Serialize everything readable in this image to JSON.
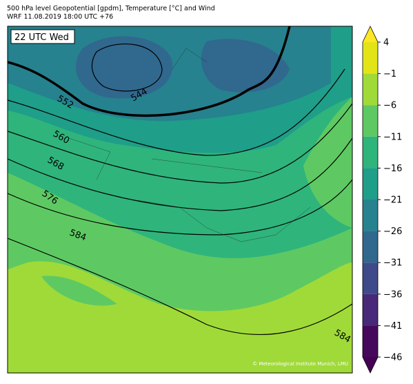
{
  "header": {
    "title": "500 hPa level Geopotential [gpdm], Temperature [°C] and Wind",
    "subtitle": "WRF 11.08.2019 18:00 UTC +76"
  },
  "map": {
    "time_label": "22 UTC Wed",
    "contour_labels": [
      "552",
      "544",
      "560",
      "568",
      "576",
      "584",
      "584"
    ],
    "copyright": "© Meteorological Institute Munich, LMU"
  },
  "colorbar": {
    "ticks": [
      4,
      {
        "value": -1,
        "label": "−1"
      },
      {
        "value": -6,
        "label": "−6"
      },
      {
        "value": -11,
        "label": "−11"
      },
      {
        "value": -16,
        "label": "−16"
      },
      {
        "value": -21,
        "label": "−21"
      },
      {
        "value": -26,
        "label": "−26"
      },
      {
        "value": -31,
        "label": "−31"
      },
      {
        "value": -36,
        "label": "−36"
      },
      {
        "value": -41,
        "label": "−41"
      },
      {
        "value": -46,
        "label": "−46"
      }
    ],
    "lim": [
      -46,
      4
    ],
    "colors": [
      "#e2e418",
      "#a0da39",
      "#5ec962",
      "#2fb47c",
      "#1f9e89",
      "#26828e",
      "#31688e",
      "#3e4a89",
      "#482878",
      "#46085c"
    ],
    "over_color": "#fde725",
    "under_color": "#440154"
  }
}
